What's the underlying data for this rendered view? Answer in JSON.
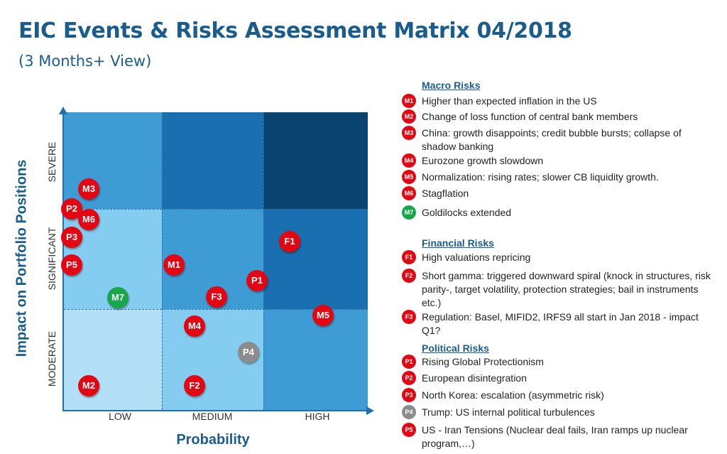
{
  "header": {
    "title": "EIC Events & Risks Assessment Matrix 04/2018",
    "subtitle": "(3 Months+ View)"
  },
  "matrix": {
    "x_axis_label": "Probability",
    "y_axis_label": "Impact on Portfolio Positions",
    "x_ticks": [
      "LOW",
      "MEDIUM",
      "HIGH"
    ],
    "y_ticks": [
      "SEVERE",
      "SIGNIFICANT",
      "MODERATE"
    ],
    "cell_colors": {
      "severe_low": "#3f9bd3",
      "severe_medium": "#1a6fb0",
      "severe_high": "#0a4270",
      "significant_low": "#84cdf0",
      "significant_medium": "#3f9bd3",
      "significant_high": "#1a6fb0",
      "moderate_low": "#b3e0f7",
      "moderate_medium": "#84cdf0",
      "moderate_high": "#3f9bd3"
    },
    "markers": [
      {
        "label": "M3",
        "color": "#e30613"
      },
      {
        "label": "P2",
        "color": "#e30613"
      },
      {
        "label": "M6",
        "color": "#e30613"
      },
      {
        "label": "P3",
        "color": "#e30613"
      },
      {
        "label": "P5",
        "color": "#e30613"
      },
      {
        "label": "M7",
        "color": "#1aa64a"
      },
      {
        "label": "M1",
        "color": "#e30613"
      },
      {
        "label": "F3",
        "color": "#e30613"
      },
      {
        "label": "P1",
        "color": "#e30613"
      },
      {
        "label": "F1",
        "color": "#e30613"
      },
      {
        "label": "M4",
        "color": "#e30613"
      },
      {
        "label": "M5",
        "color": "#e30613"
      },
      {
        "label": "P4",
        "color": "#8c8c8c"
      },
      {
        "label": "M2",
        "color": "#e30613"
      },
      {
        "label": "F2",
        "color": "#e30613"
      }
    ]
  },
  "legend": {
    "macro": {
      "heading": "Macro Risks",
      "items": [
        {
          "code": "M1",
          "text": "Higher than expected inflation in the US",
          "color": "#e30613"
        },
        {
          "code": "M2",
          "text": "Change of loss function of central bank members",
          "color": "#e30613"
        },
        {
          "code": "M3",
          "text": "China: growth disappoints; credit bubble bursts; collapse of shadow banking",
          "color": "#e30613"
        },
        {
          "code": "M4",
          "text": "Eurozone growth slowdown",
          "color": "#e30613"
        },
        {
          "code": "M5",
          "text": "Normalization: rising rates; slower CB liquidity growth.",
          "color": "#e30613"
        },
        {
          "code": "M6",
          "text": "Stagflation",
          "color": "#e30613"
        },
        {
          "code": "M7",
          "text": "Goldilocks extended",
          "color": "#1aa64a"
        }
      ]
    },
    "financial": {
      "heading": "Financial Risks",
      "items": [
        {
          "code": "F1",
          "text": "High valuations repricing",
          "color": "#e30613"
        },
        {
          "code": "F2",
          "text": "Short gamma: triggered downward spiral (knock in structures, risk parity-, target volatility, protection strategies; bail in instruments etc.)",
          "color": "#e30613"
        },
        {
          "code": "F3",
          "text": "Regulation: Basel, MIFID2, IRFS9 all start in Jan 2018 - impact Q1?",
          "color": "#e30613"
        }
      ]
    },
    "political": {
      "heading": "Political Risks",
      "items": [
        {
          "code": "P1",
          "text": "Rising Global Protectionism",
          "color": "#e30613"
        },
        {
          "code": "P2",
          "text": "European disintegration",
          "color": "#e30613"
        },
        {
          "code": "P3",
          "text": "North Korea: escalation (asymmetric risk)",
          "color": "#e30613"
        },
        {
          "code": "P4",
          "text": "Trump: US internal political turbulences",
          "color": "#8c8c8c"
        },
        {
          "code": "P5",
          "text": "US - Iran Tensions (Nuclear deal fails, Iran ramps up nuclear program,…)",
          "color": "#e30613"
        }
      ]
    }
  }
}
